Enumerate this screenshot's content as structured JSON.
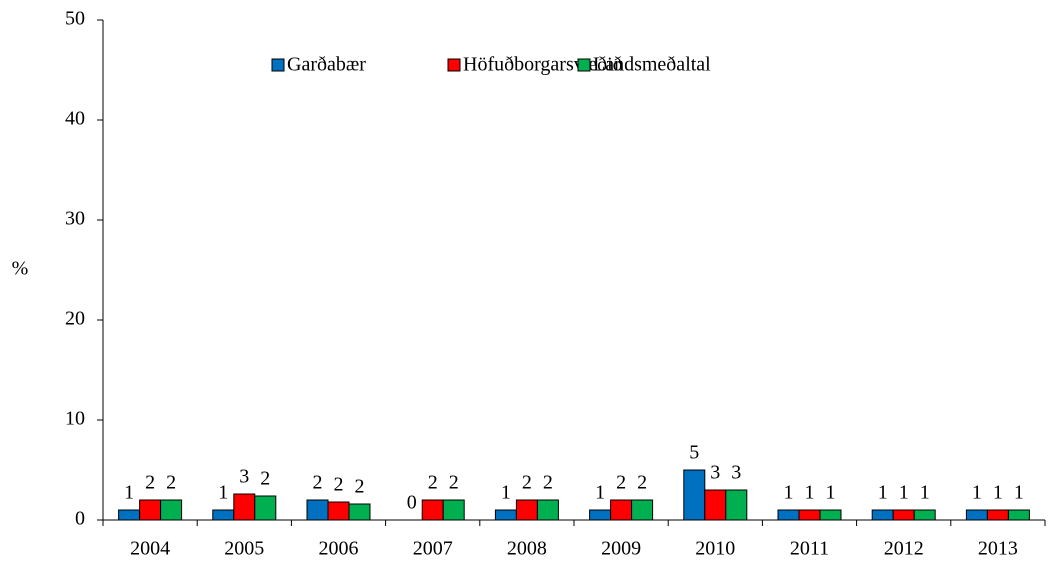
{
  "chart_data": {
    "type": "bar",
    "y_label": "%",
    "categories": [
      "2004",
      "2005",
      "2006",
      "2007",
      "2008",
      "2009",
      "2010",
      "2011",
      "2012",
      "2013"
    ],
    "series": [
      {
        "name": "Garðabær",
        "color": "#0070c0",
        "values": [
          1,
          1,
          2,
          0,
          1,
          1,
          5,
          1,
          1,
          1
        ],
        "value_labels": [
          "1",
          "1",
          "2",
          "0",
          "1",
          "1",
          "5",
          "1",
          "1",
          "1"
        ]
      },
      {
        "name": "Höfuðborgarsvæðið",
        "color": "#ff0000",
        "values": [
          2,
          2.6,
          1.8,
          2,
          2,
          2,
          3,
          1,
          1,
          1
        ],
        "value_labels": [
          "2",
          "3",
          "2",
          "2",
          "2",
          "2",
          "3",
          "1",
          "1",
          "1"
        ]
      },
      {
        "name": "Landsmeðaltal",
        "color": "#00b050",
        "values": [
          2,
          2.4,
          1.6,
          2,
          2,
          2,
          3,
          1,
          1,
          1
        ],
        "value_labels": [
          "2",
          "2",
          "2",
          "2",
          "2",
          "2",
          "3",
          "1",
          "1",
          "1"
        ]
      }
    ],
    "ylim": [
      0,
      50
    ],
    "yticks": [
      0,
      10,
      20,
      30,
      40,
      50
    ],
    "legend": "top"
  }
}
